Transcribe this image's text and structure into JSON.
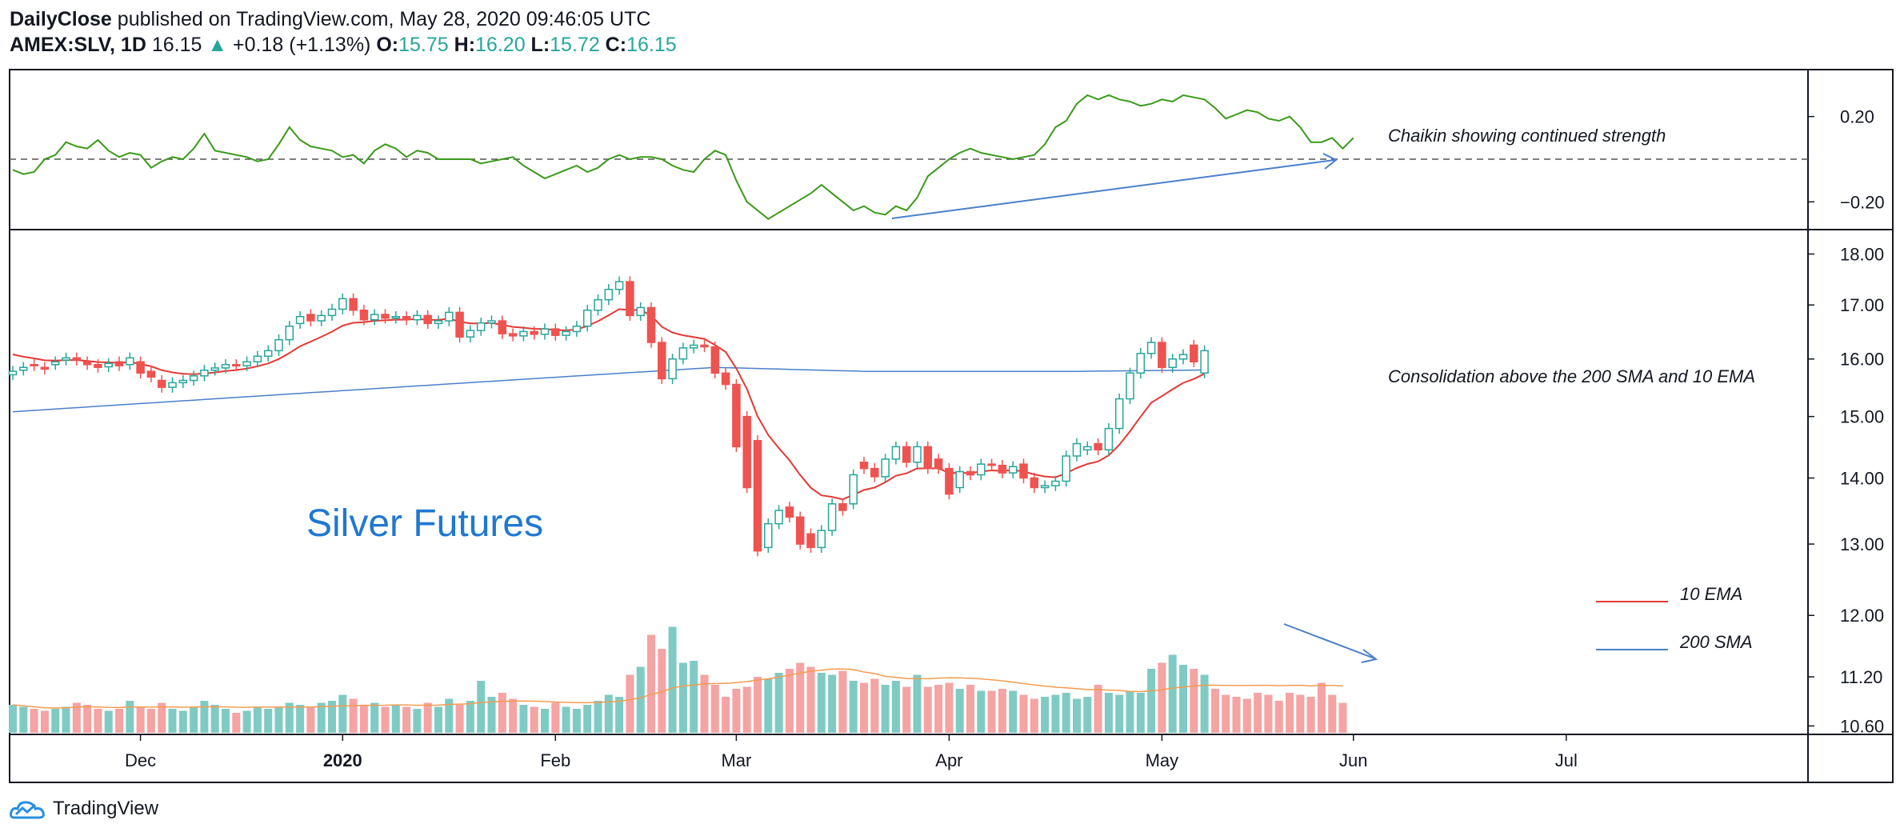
{
  "header": {
    "publisher": "DailyClose",
    "published_text": "published on TradingView.com, May 28, 2020 09:46:05 UTC",
    "symbol": "AMEX:SLV, 1D",
    "last": "16.15",
    "change": "+0.18 (+1.13%)",
    "o_label": "O:",
    "o_value": "15.75",
    "h_label": "H:",
    "h_value": "16.20",
    "l_label": "L:",
    "l_value": "15.72",
    "c_label": "C:",
    "c_value": "16.15"
  },
  "footer": {
    "brand": "TradingView",
    "icon": "tradingview-cloud-icon"
  },
  "colors": {
    "up": "#26a69a",
    "down": "#ef5350",
    "vol_up": "#7fcbc4",
    "vol_down": "#f5a3a3",
    "ema10": "#e53935",
    "sma200": "#4a7fcb",
    "vol_ma": "#f59b51",
    "chaikin": "#3a9a1a",
    "annotation_arrow": "#4a7fcb"
  },
  "chart_data": [
    {
      "type": "line",
      "name": "chaikin-oscillator",
      "title": "",
      "annotation": "Chaikin showing continued strength",
      "y_ticks": [
        "0.20",
        "−0.20"
      ],
      "y_tick_values": [
        0.2,
        -0.2
      ],
      "ylim": [
        -0.33,
        0.42
      ],
      "zero_line": true,
      "series": [
        {
          "values": [
            -0.05,
            -0.07,
            -0.06,
            0.0,
            0.02,
            0.08,
            0.06,
            0.05,
            0.09,
            0.04,
            0.01,
            0.03,
            0.02,
            -0.04,
            -0.01,
            0.01,
            0.0,
            0.05,
            0.12,
            0.04,
            0.03,
            0.02,
            0.01,
            -0.01,
            0.0,
            0.07,
            0.15,
            0.09,
            0.06,
            0.05,
            0.04,
            0.01,
            0.02,
            -0.02,
            0.04,
            0.07,
            0.05,
            0.01,
            0.04,
            0.03,
            0.0,
            0.0,
            0.0,
            0.0,
            -0.02,
            -0.01,
            0.0,
            0.01,
            -0.03,
            -0.06,
            -0.09,
            -0.07,
            -0.05,
            -0.03,
            -0.06,
            -0.04,
            0.0,
            0.02,
            0.0,
            0.01,
            0.01,
            0.0,
            -0.03,
            -0.05,
            -0.06,
            0.0,
            0.04,
            0.02,
            -0.1,
            -0.2,
            -0.24,
            -0.28,
            -0.25,
            -0.22,
            -0.19,
            -0.16,
            -0.12,
            -0.16,
            -0.2,
            -0.24,
            -0.22,
            -0.25,
            -0.26,
            -0.22,
            -0.24,
            -0.18,
            -0.08,
            -0.04,
            0.0,
            0.03,
            0.05,
            0.03,
            0.02,
            0.01,
            0.0,
            0.01,
            0.02,
            0.07,
            0.15,
            0.18,
            0.26,
            0.3,
            0.28,
            0.3,
            0.28,
            0.27,
            0.25,
            0.26,
            0.28,
            0.27,
            0.3,
            0.29,
            0.28,
            0.24,
            0.19,
            0.21,
            0.23,
            0.22,
            0.19,
            0.18,
            0.2,
            0.15,
            0.08,
            0.08,
            0.1,
            0.05,
            0.1
          ]
        }
      ]
    },
    {
      "type": "candlestick",
      "name": "SLV-daily",
      "title": "Silver Futures",
      "y_ticks": [
        "18.00",
        "17.00",
        "16.00",
        "15.00",
        "14.00",
        "13.00",
        "12.00",
        "11.20",
        "10.60"
      ],
      "y_tick_values": [
        18.0,
        17.0,
        16.0,
        15.0,
        14.0,
        13.0,
        12.0,
        11.2,
        10.6
      ],
      "scale": "log",
      "ylim": [
        10.5,
        18.5
      ],
      "x_tick_labels": [
        "Dec",
        "2020",
        "Feb",
        "Mar",
        "Apr",
        "May",
        "Jun",
        "Jul"
      ],
      "x_tick_index": [
        12,
        31,
        51,
        68,
        88,
        108,
        126,
        146
      ],
      "x_axis_bars": 165,
      "annotations": [
        "Consolidation above the 200 SMA and 10 EMA"
      ],
      "legend": [
        {
          "label": "10 EMA",
          "color": "#e53935"
        },
        {
          "label": "200 SMA",
          "color": "#4a7fcb"
        }
      ],
      "closes": [
        15.78,
        15.85,
        15.88,
        15.82,
        15.95,
        16.02,
        15.98,
        15.9,
        15.85,
        15.92,
        15.88,
        16.02,
        15.75,
        15.68,
        15.5,
        15.58,
        15.62,
        15.7,
        15.8,
        15.84,
        15.9,
        15.88,
        15.95,
        16.05,
        16.15,
        16.35,
        16.6,
        16.78,
        16.7,
        16.8,
        16.92,
        17.12,
        16.9,
        16.72,
        16.82,
        16.75,
        16.78,
        16.72,
        16.8,
        16.65,
        16.7,
        16.86,
        16.4,
        16.52,
        16.66,
        16.7,
        16.46,
        16.42,
        16.5,
        16.45,
        16.55,
        16.43,
        16.5,
        16.6,
        16.9,
        17.1,
        17.3,
        17.45,
        16.8,
        16.95,
        16.3,
        15.65,
        16.0,
        16.2,
        16.25,
        16.22,
        15.75,
        15.55,
        14.5,
        13.85,
        12.9,
        13.3,
        13.5,
        13.4,
        13.0,
        12.95,
        13.2,
        13.6,
        13.5,
        14.05,
        14.15,
        14.02,
        14.3,
        14.5,
        14.25,
        14.5,
        14.15,
        14.15,
        13.75,
        14.1,
        14.05,
        14.22,
        14.2,
        14.08,
        14.18,
        14.0,
        13.85,
        13.88,
        13.95,
        14.35,
        14.55,
        14.5,
        14.45,
        14.8,
        15.3,
        15.75,
        16.1,
        16.3,
        15.85,
        16.0,
        16.08,
        15.95,
        16.15
      ],
      "opens": [
        15.72,
        15.8,
        15.9,
        15.85,
        15.9,
        15.98,
        16.02,
        15.95,
        15.9,
        15.86,
        15.95,
        15.9,
        15.95,
        15.78,
        15.62,
        15.5,
        15.58,
        15.62,
        15.7,
        15.8,
        15.84,
        15.9,
        15.88,
        15.95,
        16.05,
        16.15,
        16.35,
        16.65,
        16.82,
        16.7,
        16.8,
        16.92,
        17.12,
        16.9,
        16.72,
        16.82,
        16.75,
        16.78,
        16.72,
        16.8,
        16.65,
        16.7,
        16.86,
        16.4,
        16.52,
        16.66,
        16.7,
        16.46,
        16.42,
        16.5,
        16.45,
        16.55,
        16.43,
        16.5,
        16.6,
        16.9,
        17.1,
        17.3,
        17.45,
        16.8,
        16.95,
        16.3,
        15.65,
        16.0,
        16.2,
        16.25,
        16.22,
        15.75,
        15.55,
        15.0,
        14.6,
        12.95,
        13.3,
        13.55,
        13.4,
        13.15,
        12.95,
        13.2,
        13.6,
        13.6,
        14.25,
        14.15,
        14.02,
        14.3,
        14.5,
        14.25,
        14.5,
        14.3,
        14.15,
        13.85,
        14.1,
        14.05,
        14.22,
        14.2,
        14.08,
        14.22,
        14.0,
        13.85,
        13.88,
        13.95,
        14.35,
        14.45,
        14.55,
        14.45,
        14.8,
        15.3,
        15.75,
        16.1,
        16.3,
        15.85,
        16.0,
        16.25,
        15.75
      ]
    },
    {
      "type": "bar",
      "name": "volume",
      "title": "",
      "values": [
        1.4,
        1.3,
        1.2,
        1.1,
        1.2,
        1.3,
        1.5,
        1.4,
        1.2,
        1.1,
        1.2,
        1.6,
        1.3,
        1.2,
        1.5,
        1.2,
        1.1,
        1.3,
        1.6,
        1.4,
        1.2,
        1.0,
        1.1,
        1.3,
        1.2,
        1.3,
        1.5,
        1.4,
        1.3,
        1.5,
        1.6,
        1.9,
        1.7,
        1.4,
        1.5,
        1.3,
        1.4,
        1.3,
        1.2,
        1.5,
        1.3,
        1.7,
        1.4,
        1.6,
        2.6,
        1.8,
        2.0,
        1.7,
        1.4,
        1.3,
        1.2,
        1.5,
        1.3,
        1.2,
        1.4,
        1.6,
        1.9,
        1.8,
        2.9,
        3.3,
        4.9,
        4.2,
        5.3,
        3.5,
        3.6,
        2.9,
        2.4,
        1.8,
        2.2,
        2.3,
        2.8,
        2.7,
        3.0,
        3.2,
        3.5,
        3.3,
        3.0,
        2.9,
        3.1,
        2.6,
        2.5,
        2.7,
        2.4,
        2.6,
        2.3,
        2.9,
        2.3,
        2.4,
        2.5,
        2.2,
        2.4,
        2.1,
        2.1,
        2.2,
        2.1,
        1.9,
        1.7,
        1.8,
        1.9,
        2.0,
        1.7,
        1.8,
        2.4,
        2.0,
        1.9,
        2.1,
        2.0,
        3.2,
        3.5,
        3.9,
        3.4,
        3.2,
        2.9,
        2.2,
        1.9,
        1.8,
        1.7,
        2.0,
        1.9,
        1.6,
        2.0,
        1.9,
        1.8,
        2.5,
        1.9,
        1.5
      ],
      "note": ""
    }
  ]
}
